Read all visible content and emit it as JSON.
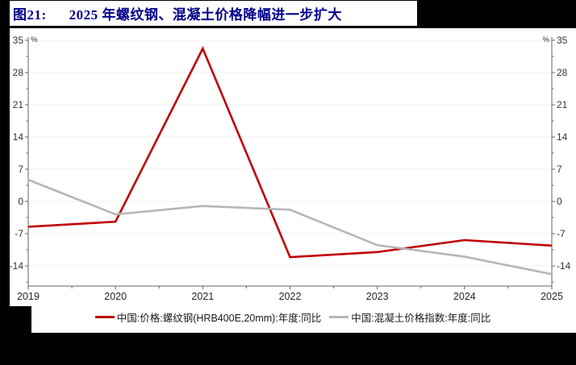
{
  "page": {
    "background": "#000000",
    "panel_background": "#ffffff"
  },
  "header": {
    "figure_label": "图21:",
    "title": "2025 年螺纹钢、混凝土价格降幅进一步扩大",
    "color": "#00008b"
  },
  "chart_data": {
    "type": "line",
    "title": "2025 年螺纹钢、混凝土价格降幅进一步扩大",
    "x": [
      2019,
      2020,
      2021,
      2022,
      2023,
      2024,
      2025
    ],
    "series": [
      {
        "name": "中国:价格:螺纹钢(HRB400E,20mm):年度:同比",
        "color": "#c00000",
        "values": [
          -5.5,
          -4.4,
          33.2,
          -12.1,
          -11.0,
          -8.4,
          -9.6
        ]
      },
      {
        "name": "中国:混凝土价格指数:年度:同比",
        "color": "#b6b6b6",
        "values": [
          4.7,
          -2.8,
          -1.0,
          -1.8,
          -9.5,
          -12.0,
          -15.8
        ]
      }
    ],
    "unit_left": "%",
    "unit_right": "%",
    "y_ticks": [
      -14,
      -7,
      0,
      7,
      14,
      21,
      28,
      35
    ],
    "y_minor_step": 3.5,
    "ylim": [
      -18.4,
      35.4
    ],
    "grid": true,
    "dual_axis": true,
    "legend_position": "bottom",
    "axis_color": "#666666",
    "tick_label_color": "#333333",
    "grid_color": "#f0f0f0"
  }
}
